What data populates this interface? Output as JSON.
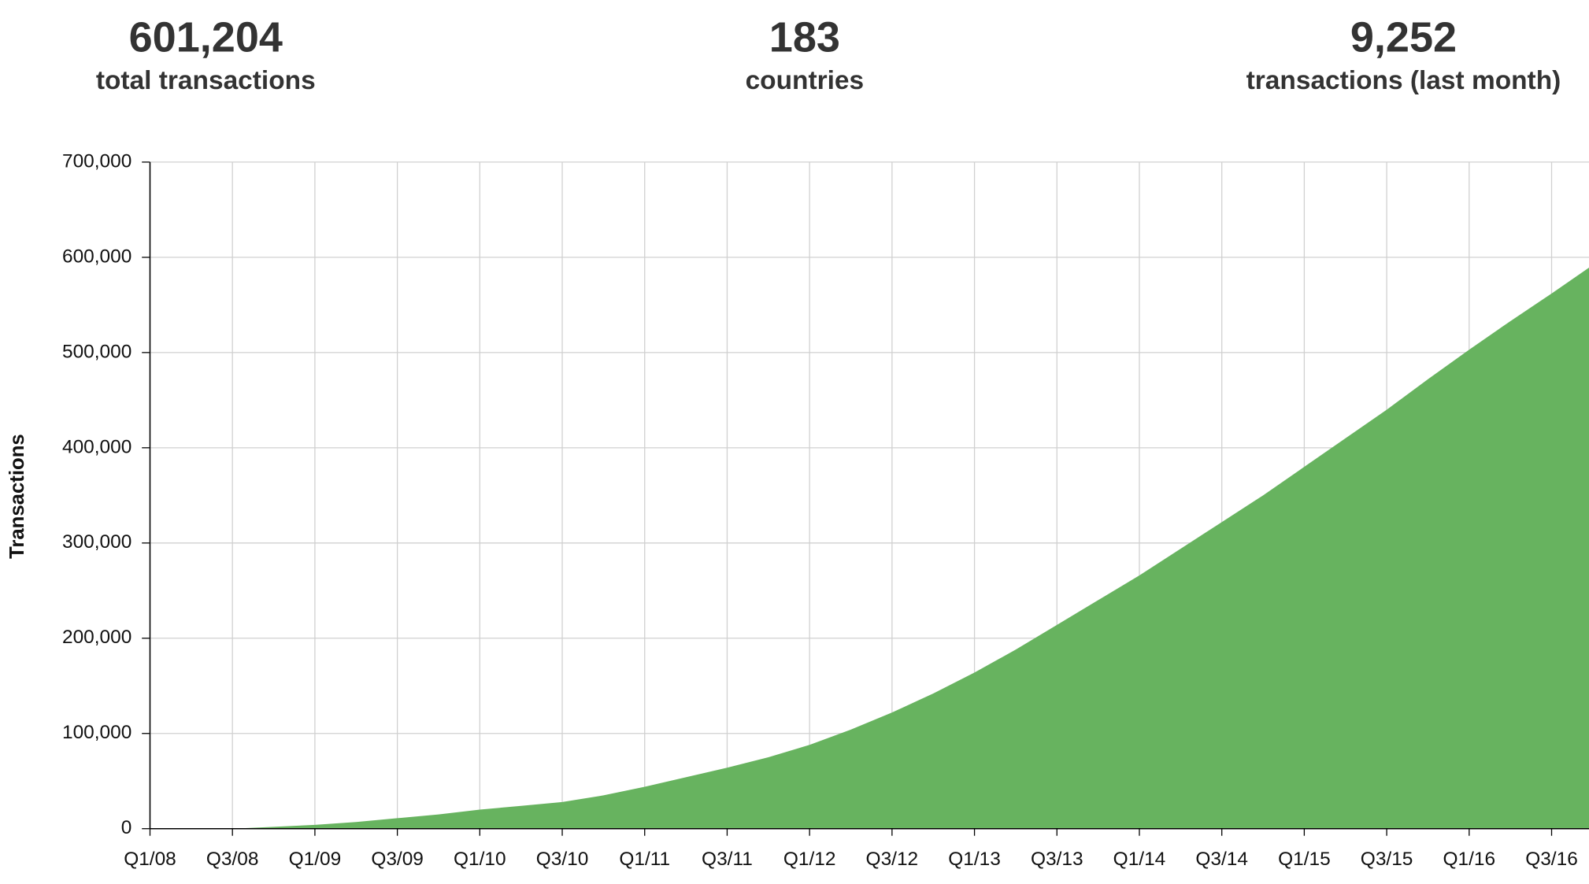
{
  "stats": [
    {
      "value": "601,204",
      "label": "total transactions"
    },
    {
      "value": "183",
      "label": "countries"
    },
    {
      "value": "9,252",
      "label": "transactions (last month)"
    }
  ],
  "chart_data": {
    "type": "area",
    "y_label": "Transactions",
    "categories": [
      "Q1/08",
      null,
      "Q3/08",
      null,
      "Q1/09",
      null,
      "Q3/09",
      null,
      "Q1/10",
      null,
      "Q3/10",
      null,
      "Q1/11",
      null,
      "Q3/11",
      null,
      "Q1/12",
      null,
      "Q3/12",
      null,
      "Q1/13",
      null,
      "Q3/13",
      null,
      "Q1/14",
      null,
      "Q3/14",
      null,
      "Q1/15",
      null,
      "Q3/15",
      null,
      "Q1/16",
      null,
      "Q3/16",
      null
    ],
    "values": [
      null,
      null,
      0,
      2000,
      4000,
      7000,
      11000,
      15000,
      20000,
      24000,
      28000,
      35000,
      44000,
      54000,
      64000,
      75000,
      88000,
      104000,
      122000,
      142000,
      164000,
      188000,
      214000,
      240000,
      266000,
      294000,
      322000,
      350000,
      380000,
      410000,
      440000,
      472000,
      503000,
      533000,
      562000,
      592000
    ],
    "color": "#67b35f",
    "ylim": [
      0,
      700000
    ],
    "yticks": [
      0,
      {
        "value": 100000,
        "label": "100,000"
      },
      {
        "value": 200000,
        "label": "200,000"
      },
      {
        "value": 300000,
        "label": "300,000"
      },
      {
        "value": 400000,
        "label": "400,000"
      },
      {
        "value": 500000,
        "label": "500,000"
      },
      {
        "value": 600000,
        "label": "600,000"
      },
      {
        "value": 700000,
        "label": "700,000"
      }
    ],
    "grid": true
  }
}
